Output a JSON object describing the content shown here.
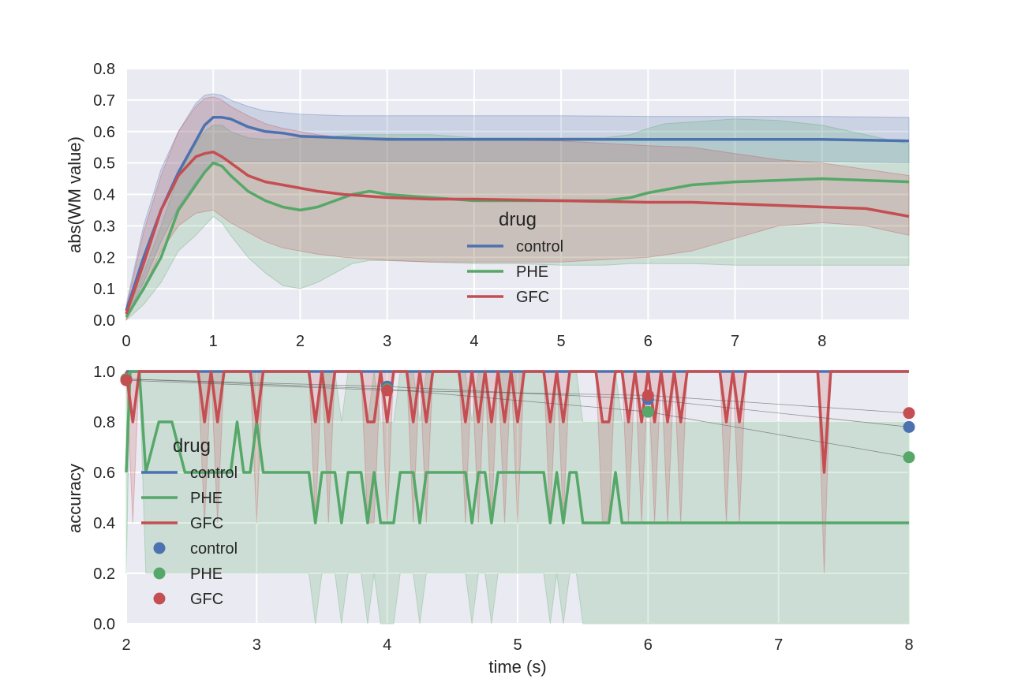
{
  "colors": {
    "background": "#eaeaf2",
    "grid": "#ffffff",
    "control": "#4c72b0",
    "PHE": "#55a868",
    "GFC": "#c44e52"
  },
  "chart_data": [
    {
      "type": "line",
      "xlabel": "",
      "ylabel": "abs(WM value)",
      "xlim": [
        0,
        9
      ],
      "ylim": [
        0,
        0.8
      ],
      "xticks": [
        "0",
        "1",
        "2",
        "3",
        "4",
        "5",
        "6",
        "7",
        "8"
      ],
      "yticks": [
        "0.0",
        "0.1",
        "0.2",
        "0.3",
        "0.4",
        "0.5",
        "0.6",
        "0.7",
        "0.8"
      ],
      "grid": true,
      "legend": {
        "title": "drug",
        "placement": "center",
        "entries": [
          "control",
          "PHE",
          "GFC"
        ]
      },
      "series": [
        {
          "name": "control",
          "x": [
            0,
            0.2,
            0.4,
            0.6,
            0.8,
            0.9,
            1.0,
            1.1,
            1.2,
            1.4,
            1.6,
            1.8,
            2.0,
            2.5,
            3.0,
            4.0,
            5.0,
            6.0,
            7.0,
            8.0,
            9.0
          ],
          "mean": [
            0.03,
            0.2,
            0.35,
            0.47,
            0.57,
            0.62,
            0.645,
            0.645,
            0.64,
            0.615,
            0.6,
            0.595,
            0.585,
            0.58,
            0.575,
            0.575,
            0.575,
            0.575,
            0.575,
            0.575,
            0.57
          ],
          "low": [
            0.01,
            0.12,
            0.25,
            0.36,
            0.44,
            0.47,
            0.5,
            0.505,
            0.505,
            0.505,
            0.505,
            0.505,
            0.505,
            0.505,
            0.505,
            0.505,
            0.505,
            0.505,
            0.505,
            0.505,
            0.5
          ],
          "high": [
            0.05,
            0.3,
            0.48,
            0.6,
            0.69,
            0.715,
            0.72,
            0.715,
            0.7,
            0.68,
            0.665,
            0.66,
            0.655,
            0.65,
            0.65,
            0.65,
            0.65,
            0.648,
            0.648,
            0.648,
            0.645
          ]
        },
        {
          "name": "PHE",
          "x": [
            0,
            0.2,
            0.4,
            0.6,
            0.8,
            0.9,
            1.0,
            1.1,
            1.2,
            1.4,
            1.6,
            1.8,
            2.0,
            2.2,
            2.4,
            2.6,
            2.8,
            3.0,
            3.5,
            4.0,
            4.5,
            5.0,
            5.5,
            5.8,
            6.0,
            6.2,
            6.5,
            7.0,
            7.5,
            8.0,
            8.5,
            9.0
          ],
          "mean": [
            0.01,
            0.1,
            0.2,
            0.35,
            0.43,
            0.47,
            0.5,
            0.49,
            0.46,
            0.41,
            0.38,
            0.36,
            0.35,
            0.36,
            0.38,
            0.4,
            0.41,
            0.4,
            0.39,
            0.38,
            0.38,
            0.38,
            0.38,
            0.39,
            0.405,
            0.415,
            0.43,
            0.44,
            0.445,
            0.45,
            0.445,
            0.44
          ],
          "low": [
            0.0,
            0.05,
            0.12,
            0.22,
            0.27,
            0.3,
            0.33,
            0.31,
            0.27,
            0.2,
            0.15,
            0.11,
            0.1,
            0.12,
            0.15,
            0.18,
            0.19,
            0.19,
            0.185,
            0.18,
            0.18,
            0.175,
            0.175,
            0.18,
            0.18,
            0.18,
            0.18,
            0.175,
            0.175,
            0.175,
            0.175,
            0.175
          ],
          "high": [
            0.02,
            0.15,
            0.3,
            0.46,
            0.56,
            0.6,
            0.62,
            0.62,
            0.6,
            0.58,
            0.575,
            0.575,
            0.58,
            0.58,
            0.585,
            0.59,
            0.59,
            0.59,
            0.59,
            0.58,
            0.58,
            0.58,
            0.58,
            0.59,
            0.61,
            0.625,
            0.63,
            0.64,
            0.635,
            0.62,
            0.59,
            0.56
          ]
        },
        {
          "name": "GFC",
          "x": [
            0,
            0.2,
            0.4,
            0.6,
            0.8,
            0.9,
            1.0,
            1.1,
            1.2,
            1.4,
            1.6,
            1.8,
            2.0,
            2.2,
            2.5,
            3.0,
            3.5,
            4.0,
            5.0,
            6.0,
            6.5,
            7.0,
            7.5,
            8.0,
            8.5,
            9.0
          ],
          "mean": [
            0.02,
            0.18,
            0.35,
            0.46,
            0.52,
            0.53,
            0.535,
            0.52,
            0.5,
            0.46,
            0.44,
            0.43,
            0.42,
            0.41,
            0.4,
            0.39,
            0.385,
            0.385,
            0.38,
            0.375,
            0.375,
            0.37,
            0.365,
            0.36,
            0.355,
            0.33
          ],
          "low": [
            0.0,
            0.1,
            0.22,
            0.3,
            0.34,
            0.345,
            0.35,
            0.33,
            0.31,
            0.28,
            0.25,
            0.23,
            0.22,
            0.21,
            0.2,
            0.19,
            0.185,
            0.185,
            0.185,
            0.2,
            0.22,
            0.26,
            0.3,
            0.31,
            0.3,
            0.27
          ],
          "high": [
            0.04,
            0.28,
            0.46,
            0.6,
            0.68,
            0.705,
            0.71,
            0.7,
            0.68,
            0.65,
            0.625,
            0.61,
            0.6,
            0.59,
            0.58,
            0.58,
            0.575,
            0.575,
            0.57,
            0.555,
            0.55,
            0.53,
            0.51,
            0.5,
            0.48,
            0.46
          ]
        }
      ]
    },
    {
      "type": "line",
      "xlabel": "time (s)",
      "ylabel": "accuracy",
      "xlim": [
        2,
        8
      ],
      "ylim": [
        0,
        1
      ],
      "xticks": [
        "2",
        "3",
        "4",
        "5",
        "6",
        "7",
        "8"
      ],
      "yticks": [
        "0.0",
        "0.2",
        "0.4",
        "0.6",
        "0.8",
        "1.0"
      ],
      "grid": true,
      "legend": {
        "title": "drug",
        "placement": "center-left",
        "line_entries": [
          "control",
          "PHE",
          "GFC"
        ],
        "marker_entries": [
          "control",
          "PHE",
          "GFC"
        ]
      },
      "series": [
        {
          "name": "control",
          "x": [
            2,
            8
          ],
          "values": [
            1.0,
            1.0
          ],
          "band_low": [
            1.0,
            1.0
          ],
          "band_high": [
            1.0,
            1.0
          ]
        },
        {
          "name": "PHE",
          "x": [
            2.0,
            2.03,
            2.1,
            2.15,
            2.25,
            2.35,
            2.45,
            2.5,
            2.6,
            2.7,
            2.8,
            2.85,
            2.9,
            2.95,
            3.0,
            3.05,
            3.4,
            3.45,
            3.5,
            3.55,
            3.6,
            3.65,
            3.7,
            3.8,
            3.85,
            3.9,
            3.95,
            4.0,
            4.05,
            4.1,
            4.2,
            4.25,
            4.3,
            4.35,
            4.6,
            4.65,
            4.7,
            4.75,
            4.8,
            4.85,
            5.2,
            5.25,
            5.3,
            5.35,
            5.4,
            5.45,
            5.5,
            5.7,
            5.75,
            5.8,
            8.0
          ],
          "values": [
            0.6,
            1.0,
            1.0,
            0.6,
            0.8,
            0.8,
            0.6,
            0.6,
            0.6,
            0.6,
            0.6,
            0.8,
            0.6,
            0.6,
            0.8,
            0.6,
            0.6,
            0.4,
            0.6,
            0.6,
            0.6,
            0.4,
            0.6,
            0.6,
            0.4,
            0.6,
            0.4,
            0.4,
            0.4,
            0.6,
            0.6,
            0.4,
            0.6,
            0.6,
            0.6,
            0.4,
            0.6,
            0.6,
            0.4,
            0.6,
            0.6,
            0.4,
            0.6,
            0.4,
            0.6,
            0.6,
            0.4,
            0.4,
            0.6,
            0.4,
            0.4
          ],
          "band_low": [
            0.2,
            1.0,
            1.0,
            0.2,
            0.2,
            0.2,
            0.2,
            0.2,
            0.2,
            0.2,
            0.2,
            0.2,
            0.2,
            0.2,
            0.2,
            0.2,
            0.2,
            0.0,
            0.2,
            0.2,
            0.2,
            0.0,
            0.2,
            0.2,
            0.0,
            0.2,
            0.0,
            0.0,
            0.0,
            0.2,
            0.2,
            0.0,
            0.2,
            0.2,
            0.2,
            0.0,
            0.2,
            0.2,
            0.0,
            0.2,
            0.2,
            0.0,
            0.2,
            0.0,
            0.2,
            0.2,
            0.0,
            0.0,
            0.0,
            0.0,
            0.0
          ],
          "band_high": [
            1.0,
            1.0,
            1.0,
            1.0,
            1.0,
            1.0,
            1.0,
            1.0,
            1.0,
            1.0,
            1.0,
            1.0,
            1.0,
            1.0,
            1.0,
            1.0,
            1.0,
            0.8,
            1.0,
            1.0,
            1.0,
            0.8,
            1.0,
            1.0,
            0.8,
            1.0,
            0.8,
            0.8,
            0.8,
            1.0,
            1.0,
            0.8,
            1.0,
            1.0,
            1.0,
            0.8,
            1.0,
            1.0,
            0.8,
            1.0,
            1.0,
            0.8,
            1.0,
            0.8,
            1.0,
            1.0,
            0.8,
            0.8,
            1.0,
            0.8,
            0.8
          ]
        },
        {
          "name": "GFC",
          "x": [
            2.0,
            2.05,
            2.1,
            2.15,
            2.55,
            2.6,
            2.65,
            2.7,
            2.75,
            2.8,
            2.95,
            3.0,
            3.05,
            3.4,
            3.45,
            3.5,
            3.55,
            3.6,
            3.65,
            3.8,
            3.85,
            3.9,
            3.95,
            4.0,
            4.05,
            4.15,
            4.2,
            4.25,
            4.3,
            4.35,
            4.55,
            4.6,
            4.65,
            4.7,
            4.75,
            4.8,
            4.85,
            4.9,
            4.95,
            5.0,
            5.05,
            5.2,
            5.25,
            5.3,
            5.35,
            5.4,
            5.45,
            5.6,
            5.65,
            5.7,
            5.75,
            5.8,
            5.85,
            5.9,
            5.95,
            6.0,
            6.05,
            6.1,
            6.15,
            6.2,
            6.25,
            6.3,
            6.35,
            6.55,
            6.6,
            6.65,
            6.7,
            6.75,
            7.3,
            7.35,
            7.4,
            8.0
          ],
          "values": [
            1.0,
            0.8,
            1.0,
            1.0,
            1.0,
            0.8,
            1.0,
            0.8,
            1.0,
            1.0,
            1.0,
            0.8,
            1.0,
            1.0,
            0.8,
            1.0,
            0.8,
            1.0,
            1.0,
            1.0,
            0.8,
            0.8,
            1.0,
            0.8,
            1.0,
            1.0,
            0.8,
            1.0,
            0.8,
            1.0,
            1.0,
            0.8,
            1.0,
            0.8,
            1.0,
            0.8,
            1.0,
            0.8,
            1.0,
            0.8,
            1.0,
            1.0,
            0.8,
            1.0,
            0.8,
            1.0,
            1.0,
            1.0,
            0.8,
            0.8,
            1.0,
            1.0,
            0.8,
            1.0,
            0.8,
            1.0,
            0.8,
            1.0,
            0.8,
            1.0,
            0.8,
            1.0,
            1.0,
            1.0,
            0.8,
            1.0,
            0.8,
            1.0,
            1.0,
            0.6,
            1.0,
            1.0
          ],
          "band_low": [
            1.0,
            0.4,
            1.0,
            1.0,
            1.0,
            0.4,
            1.0,
            0.4,
            1.0,
            1.0,
            1.0,
            0.4,
            1.0,
            1.0,
            0.4,
            1.0,
            0.4,
            1.0,
            1.0,
            1.0,
            0.4,
            0.4,
            1.0,
            0.4,
            1.0,
            1.0,
            0.4,
            1.0,
            0.4,
            1.0,
            1.0,
            0.4,
            1.0,
            0.4,
            1.0,
            0.4,
            1.0,
            0.4,
            1.0,
            0.4,
            1.0,
            1.0,
            0.4,
            1.0,
            0.4,
            1.0,
            1.0,
            1.0,
            0.4,
            0.4,
            1.0,
            1.0,
            0.4,
            1.0,
            0.4,
            1.0,
            0.4,
            1.0,
            0.4,
            1.0,
            0.4,
            1.0,
            1.0,
            1.0,
            0.4,
            1.0,
            0.4,
            1.0,
            1.0,
            0.2,
            1.0,
            1.0
          ],
          "band_high": [
            1.0,
            1.0,
            1.0,
            1.0,
            1.0,
            1.0,
            1.0,
            1.0,
            1.0,
            1.0,
            1.0,
            1.0,
            1.0,
            1.0,
            1.0,
            1.0,
            1.0,
            1.0,
            1.0,
            1.0,
            1.0,
            1.0,
            1.0,
            1.0,
            1.0,
            1.0,
            1.0,
            1.0,
            1.0,
            1.0,
            1.0,
            1.0,
            1.0,
            1.0,
            1.0,
            1.0,
            1.0,
            1.0,
            1.0,
            1.0,
            1.0,
            1.0,
            1.0,
            1.0,
            1.0,
            1.0,
            1.0,
            1.0,
            1.0,
            1.0,
            1.0,
            1.0,
            1.0,
            1.0,
            1.0,
            1.0,
            1.0,
            1.0,
            1.0,
            1.0,
            1.0,
            1.0,
            1.0,
            1.0,
            1.0,
            1.0,
            1.0,
            1.0,
            1.0,
            1.0,
            1.0,
            1.0
          ]
        }
      ],
      "point_series": [
        {
          "name": "control",
          "x": [
            2,
            4,
            6,
            8
          ],
          "values": [
            0.97,
            0.94,
            0.89,
            0.78
          ]
        },
        {
          "name": "PHE",
          "x": [
            2,
            4,
            6,
            8
          ],
          "values": [
            0.97,
            0.93,
            0.84,
            0.66
          ]
        },
        {
          "name": "GFC",
          "x": [
            2,
            4,
            6,
            8
          ],
          "values": [
            0.965,
            0.925,
            0.905,
            0.835
          ]
        }
      ]
    }
  ]
}
